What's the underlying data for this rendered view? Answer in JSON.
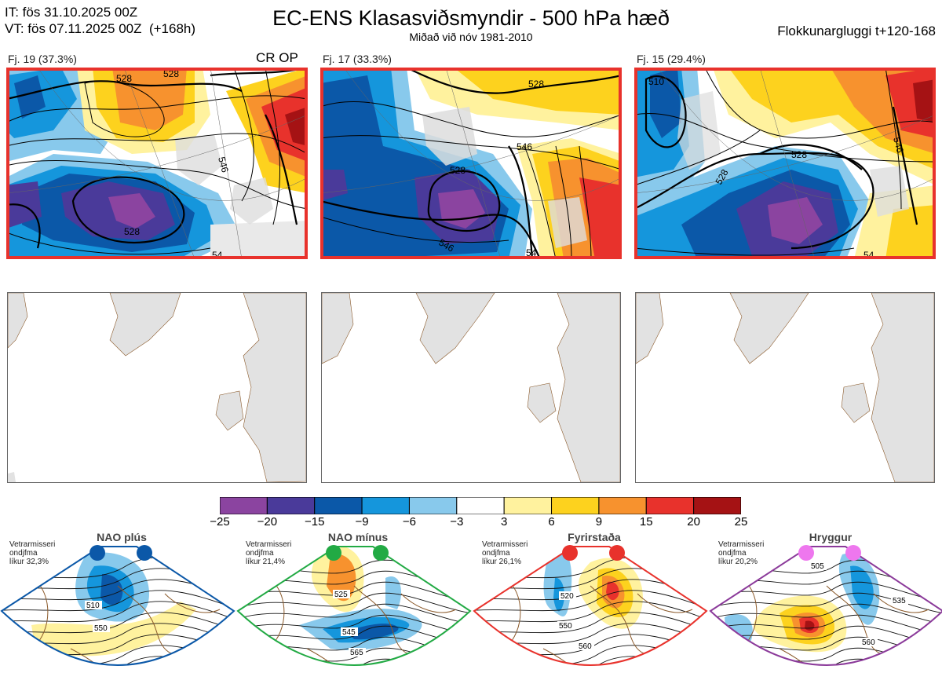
{
  "header": {
    "it_line": "IT: fös 31.10.2025 00Z",
    "vt_line": "VT: fös 07.11.2025 00Z  (+168h)",
    "title": "EC-ENS Klasasviðsmyndir - 500 hPa hæð",
    "subtitle": "Miðað við nóv 1981-2010",
    "window": "Flokkunargluggi t+120-168"
  },
  "clusters": [
    {
      "label": "Fj. 19 (37.3%)",
      "tag": "CR OP",
      "contours": [
        "528",
        "546",
        "528",
        "528",
        "54"
      ]
    },
    {
      "label": "Fj. 17 (33.3%)",
      "tag": "",
      "contours": [
        "528",
        "546",
        "528",
        "546",
        "54"
      ]
    },
    {
      "label": "Fj. 15 (29.4%)",
      "tag": "",
      "contours": [
        "510",
        "546",
        "528",
        "528",
        "54"
      ]
    }
  ],
  "colorbar": {
    "ticks": [
      "−25",
      "−20",
      "−15",
      "−9",
      "−6",
      "−3",
      "3",
      "6",
      "9",
      "15",
      "20",
      "25"
    ],
    "colors": [
      "#8b44a0",
      "#4a3a9a",
      "#0b58a8",
      "#1596dc",
      "#88c9ec",
      "#ffffff",
      "#fff29e",
      "#fdd21e",
      "#f7922e",
      "#e8322c",
      "#a51214"
    ]
  },
  "regimes": [
    {
      "title": "NAO plús",
      "note": "Vetrarmisseri\nondjfma\nlíkur 32,3%",
      "border": "#0b58a8",
      "dot": "#0b58a8",
      "labels": [
        "510",
        "550"
      ]
    },
    {
      "title": "NAO mínus",
      "note": "Vetrarmisseri\nondjfma\nlíkur 21,4%",
      "border": "#22aa44",
      "dot": "#22aa44",
      "labels": [
        "525",
        "545",
        "565"
      ]
    },
    {
      "title": "Fyrirstaða",
      "note": "Vetrarmisseri\nondjfma\nlíkur 26,1%",
      "border": "#e8322c",
      "dot": "#e8322c",
      "labels": [
        "520",
        "550",
        "560"
      ]
    },
    {
      "title": "Hryggur",
      "note": "Vetrarmisseri\nondjfma\nlíkur 20,2%",
      "border": "#8b3a9a",
      "dot": "#ee77ee",
      "labels": [
        "505",
        "535",
        "560"
      ]
    }
  ]
}
